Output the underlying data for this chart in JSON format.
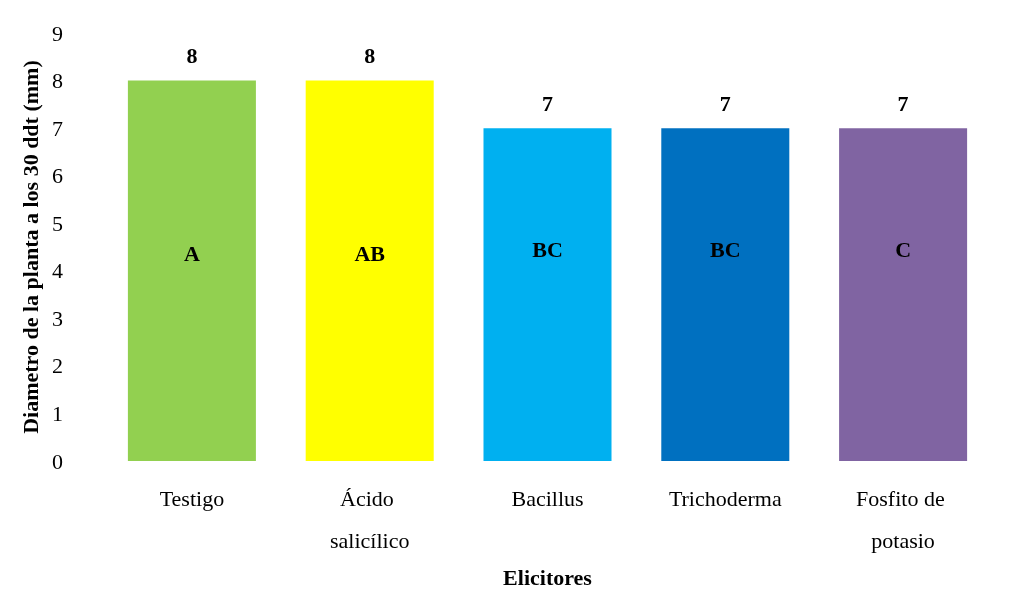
{
  "chart_data": {
    "type": "bar",
    "xlabel": "Elicitores",
    "ylabel": "Diametro de la planta a los 30 ddt (mm)",
    "categories": [
      "Testigo",
      "Ácido salicílico",
      "Bacillus",
      "Trichoderma",
      "Fosfito de potasio"
    ],
    "values": [
      8,
      8,
      7,
      7,
      7
    ],
    "colors": [
      "#92d050",
      "#ffff00",
      "#00b0f0",
      "#0070c0",
      "#8064a2"
    ],
    "ylim": [
      0,
      9
    ],
    "yticks": [
      0,
      1,
      2,
      3,
      4,
      5,
      6,
      7,
      8,
      9
    ],
    "grid": false,
    "data_labels": true,
    "annotations": [
      "A",
      "AB",
      "BC",
      "BC",
      "C"
    ]
  }
}
